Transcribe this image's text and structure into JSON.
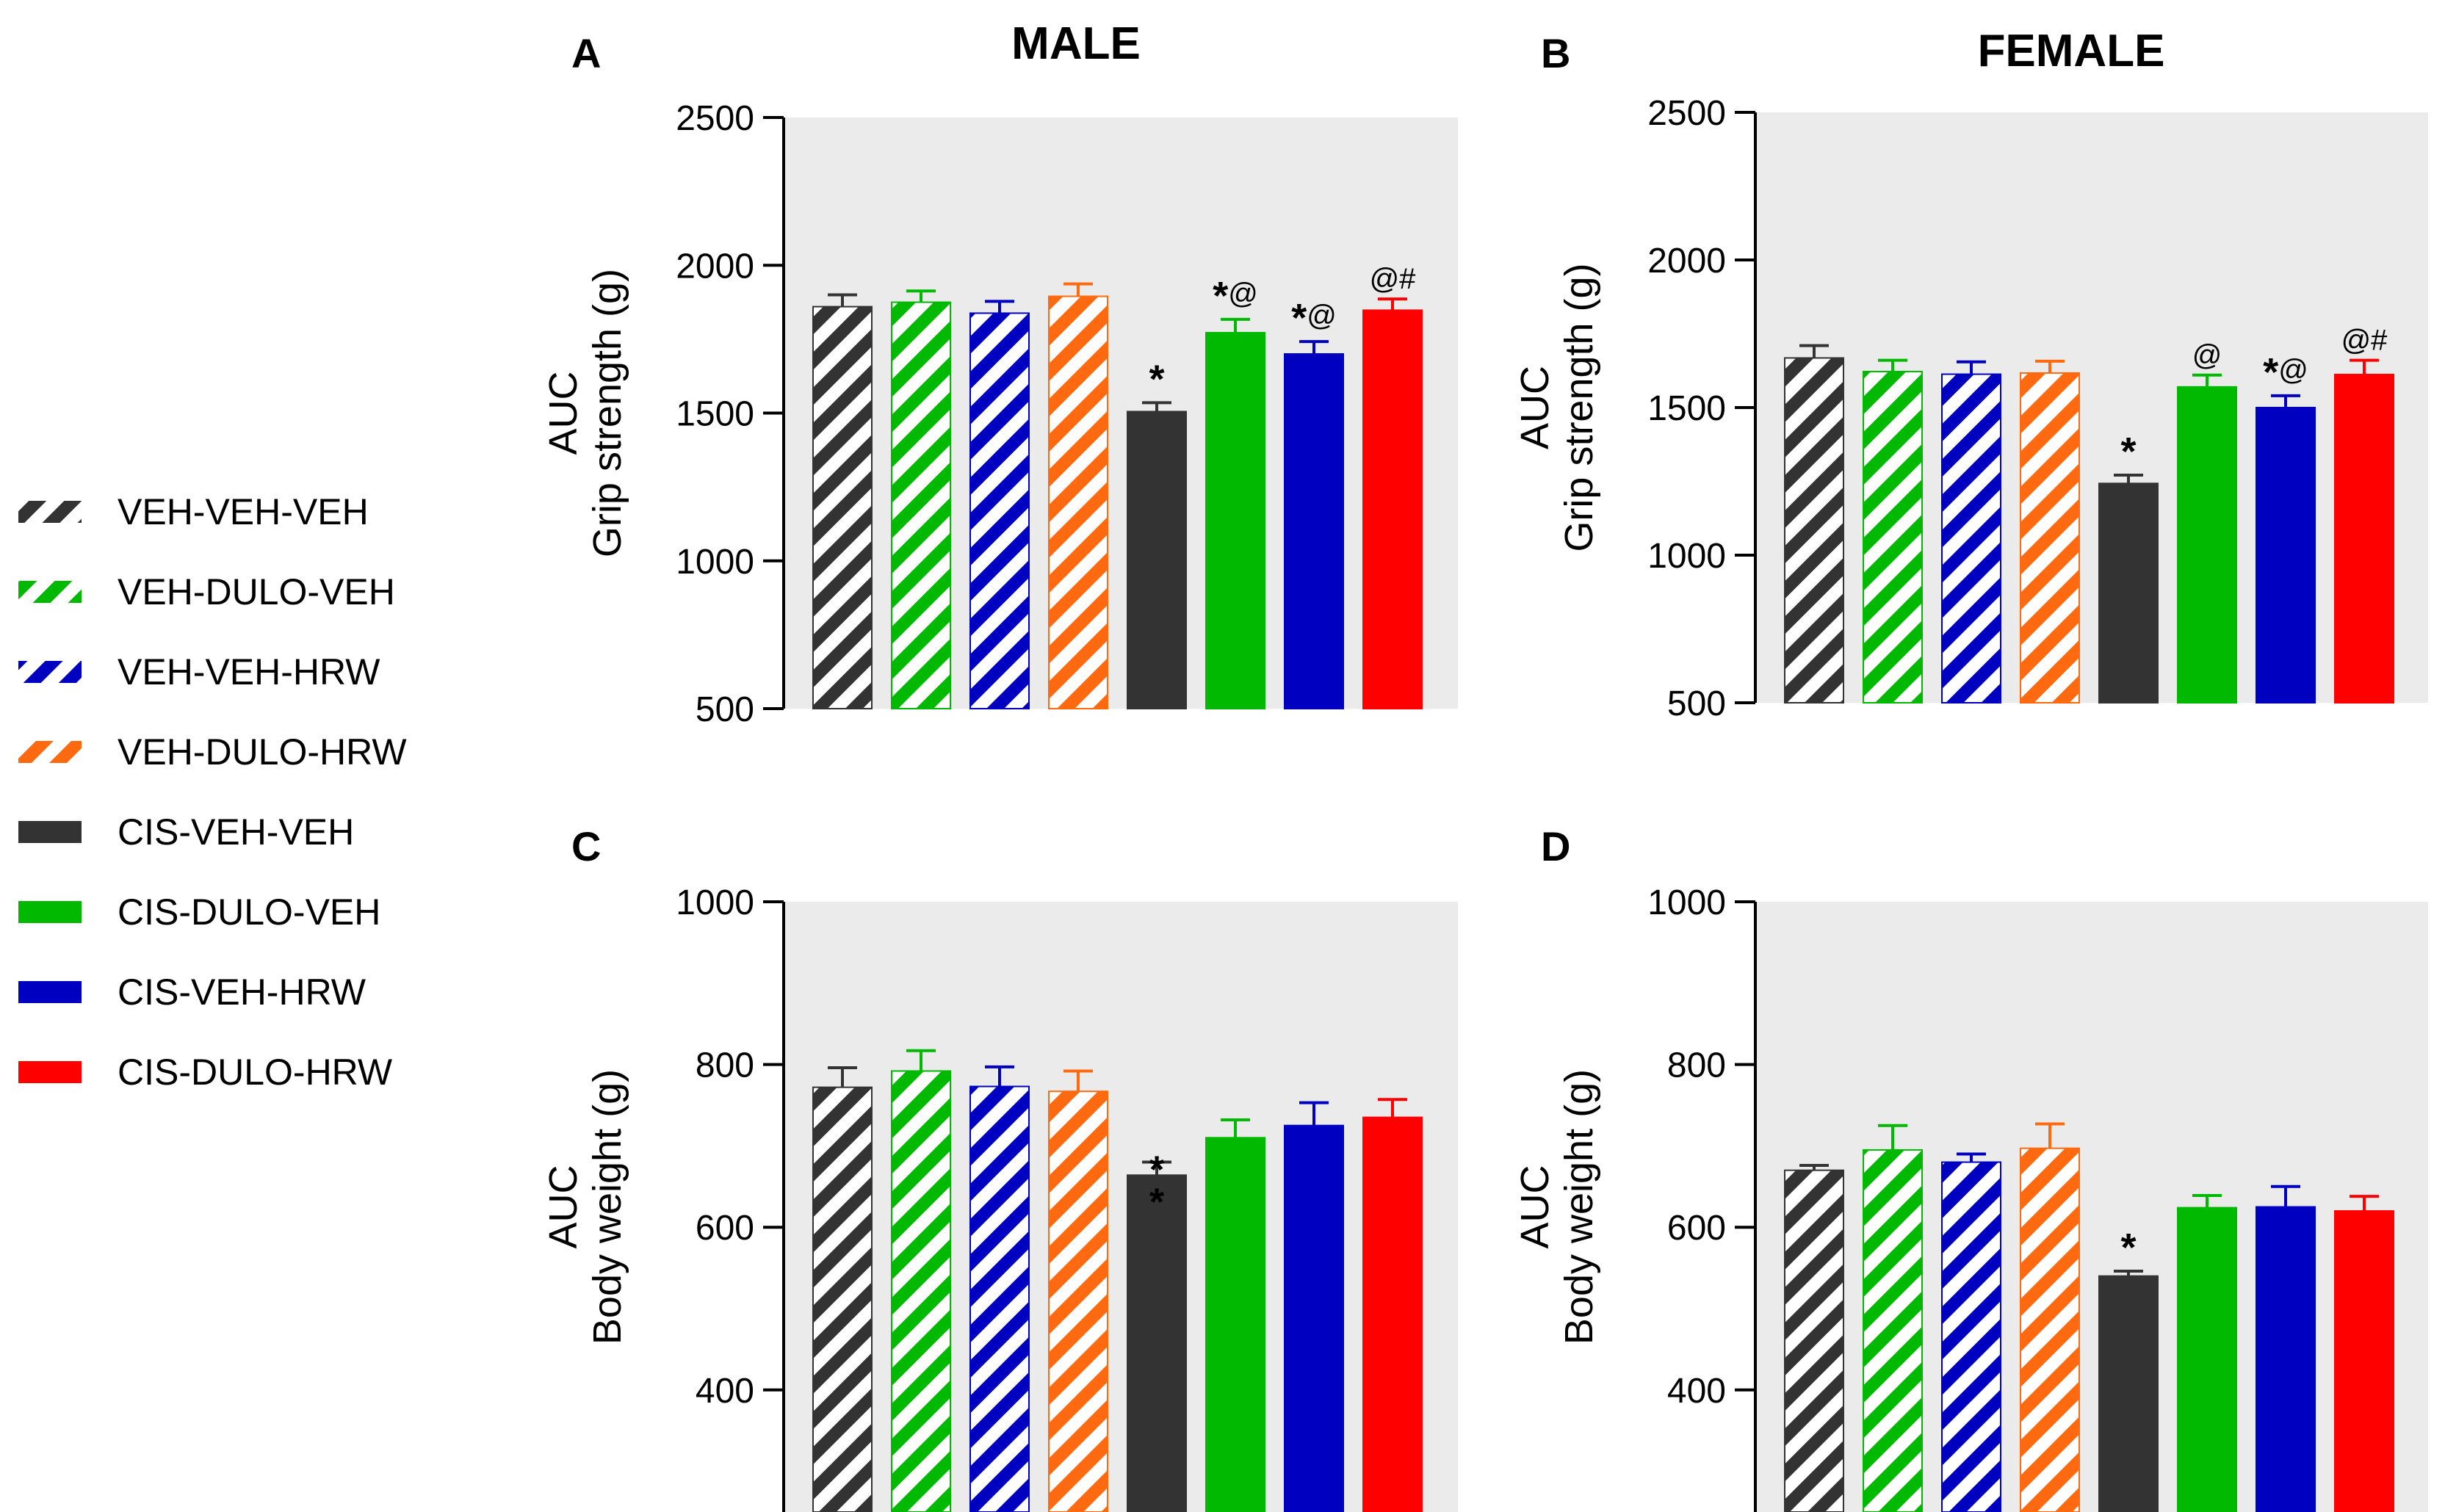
{
  "legend": [
    {
      "label": "VEH-VEH-VEH",
      "color": "#333333",
      "hatched": true
    },
    {
      "label": "VEH-DULO-VEH",
      "color": "#00b900",
      "hatched": true
    },
    {
      "label": "VEH-VEH-HRW",
      "color": "#0000c0",
      "hatched": true
    },
    {
      "label": "VEH-DULO-HRW",
      "color": "#ff6a10",
      "hatched": true
    },
    {
      "label": "CIS-VEH-VEH",
      "color": "#333333",
      "hatched": false
    },
    {
      "label": "CIS-DULO-VEH",
      "color": "#00b900",
      "hatched": false
    },
    {
      "label": "CIS-VEH-HRW",
      "color": "#0000c0",
      "hatched": false
    },
    {
      "label": "CIS-DULO-HRW",
      "color": "#ff0000",
      "hatched": false
    }
  ],
  "column_titles": {
    "male": {
      "text": "MALE",
      "color": "#4b0d5a"
    },
    "female": {
      "text": "FEMALE",
      "color": "#ff8c1a"
    }
  },
  "chart_data": [
    {
      "type": "bar",
      "panel_label": "A",
      "ylabel_line1": "AUC",
      "ylabel_line2": "Grip strength (g)",
      "ylim": [
        500,
        2500
      ],
      "yticks": [
        500,
        1000,
        1500,
        2000,
        2500
      ],
      "values": [
        1860,
        1875,
        1838,
        1895,
        1505,
        1772,
        1700,
        1848
      ],
      "errors": [
        40,
        38,
        40,
        42,
        30,
        45,
        42,
        38
      ],
      "annotations": [
        "",
        "",
        "",
        "",
        "*",
        "*@",
        "*@",
        "@#"
      ]
    },
    {
      "type": "bar",
      "panel_label": "B",
      "ylabel_line1": "AUC",
      "ylabel_line2": "Grip strength (g)",
      "ylim": [
        500,
        2500
      ],
      "yticks": [
        500,
        1000,
        1500,
        2000,
        2500
      ],
      "values": [
        1668,
        1622,
        1613,
        1617,
        1243,
        1570,
        1500,
        1612
      ],
      "errors": [
        42,
        38,
        42,
        40,
        28,
        40,
        40,
        48
      ],
      "annotations": [
        "",
        "",
        "",
        "",
        "*",
        "@",
        "*@",
        "@#"
      ]
    },
    {
      "type": "bar",
      "panel_label": "C",
      "ylabel_line1": "AUC",
      "ylabel_line2": "Body weight (g)",
      "ylim": [
        250,
        1000
      ],
      "yticks": [
        400,
        600,
        800,
        1000
      ],
      "values": [
        772,
        792,
        773,
        767,
        664,
        710,
        725,
        735
      ],
      "errors": [
        24,
        25,
        24,
        25,
        16,
        22,
        28,
        22
      ],
      "annotations": [
        "",
        "",
        "",
        "",
        "**",
        "",
        "",
        ""
      ]
    },
    {
      "type": "bar",
      "panel_label": "D",
      "ylabel_line1": "AUC",
      "ylabel_line2": "Body weight (g)",
      "ylim": [
        250,
        1000
      ],
      "yticks": [
        400,
        600,
        800,
        1000
      ],
      "values": [
        670,
        695,
        680,
        697,
        540,
        624,
        625,
        620
      ],
      "errors": [
        6,
        30,
        10,
        30,
        6,
        15,
        25,
        18
      ],
      "annotations": [
        "",
        "",
        "",
        "",
        "*",
        "",
        "",
        ""
      ]
    }
  ]
}
